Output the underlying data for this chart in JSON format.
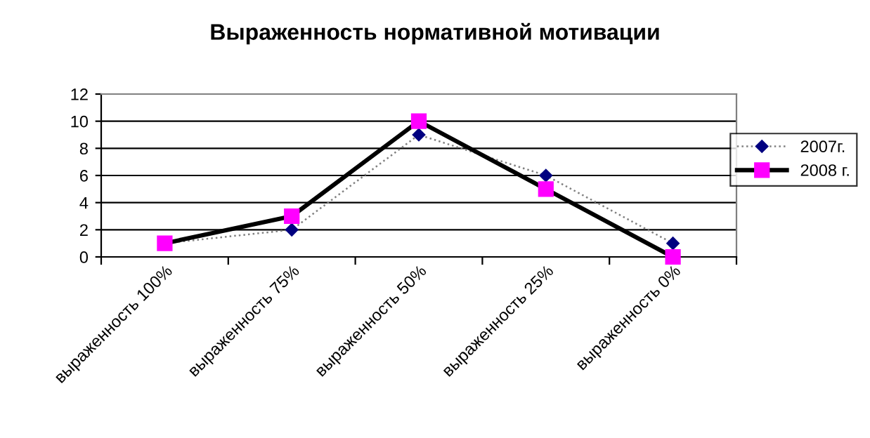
{
  "chart_data": {
    "type": "line",
    "title": "Выраженность нормативной мотивации",
    "categories": [
      "выраженность 100%",
      "выраженность 75%",
      "выраженность 50%",
      "выраженность 25%",
      "выраженность 0%"
    ],
    "series": [
      {
        "name": "2007г.",
        "color": "#000080",
        "values": [
          1,
          2,
          9,
          6,
          1
        ],
        "marker": "diamond",
        "line_style": "dotted"
      },
      {
        "name": "2008 г.",
        "color": "#ff00ff",
        "values": [
          1,
          3,
          10,
          5,
          0
        ],
        "marker": "square",
        "line_style": "solid"
      }
    ],
    "ylim": [
      0,
      12
    ],
    "yticks": [
      0,
      2,
      4,
      6,
      8,
      10,
      12
    ],
    "grid": "y",
    "legend": "right"
  }
}
